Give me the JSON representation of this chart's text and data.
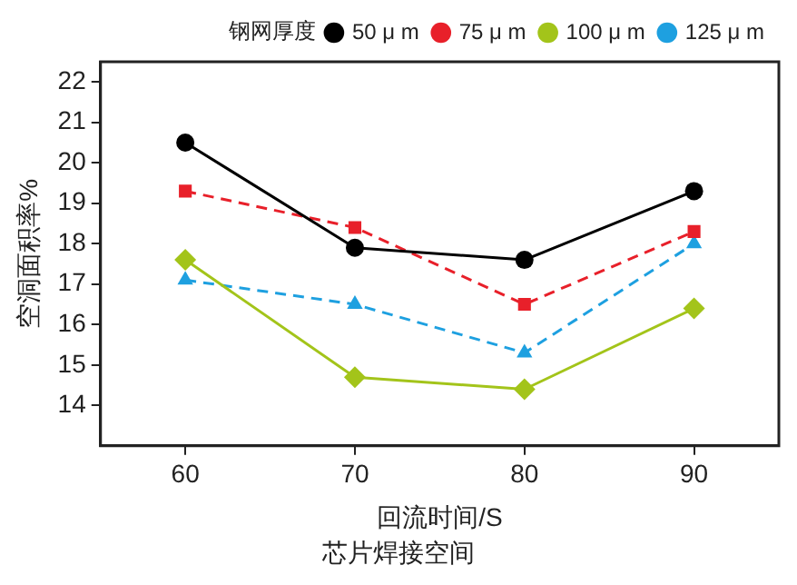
{
  "chart_data": {
    "type": "line",
    "xlabel": "回流时间/S",
    "ylabel": "空洞面积率%",
    "legend_title": "钢网厚度",
    "legend": "top",
    "grid": false,
    "x": [
      60,
      70,
      80,
      90
    ],
    "xlim": [
      55,
      95
    ],
    "xticks": [
      60,
      70,
      80,
      90
    ],
    "ylim": [
      13,
      22.5
    ],
    "yticks": [
      14,
      15,
      16,
      17,
      18,
      19,
      20,
      21,
      22
    ],
    "annotations": [
      "芯片焊接空间"
    ],
    "series": [
      {
        "name": "50 μ m",
        "color": "#000000",
        "marker": "circle",
        "line_style": "solid",
        "values": [
          20.5,
          17.9,
          17.6,
          19.3
        ]
      },
      {
        "name": "75 μ m",
        "color": "#e8202a",
        "marker": "square",
        "line_style": "dashed",
        "values": [
          19.3,
          18.4,
          16.5,
          18.3
        ]
      },
      {
        "name": "100 μ m",
        "color": "#a3c41a",
        "marker": "diamond",
        "line_style": "solid",
        "values": [
          17.6,
          14.7,
          14.4,
          16.4
        ]
      },
      {
        "name": "125 μ m",
        "color": "#1ea0e0",
        "marker": "triangle",
        "line_style": "dashed",
        "values": [
          17.1,
          16.5,
          15.3,
          18.0
        ]
      }
    ]
  }
}
